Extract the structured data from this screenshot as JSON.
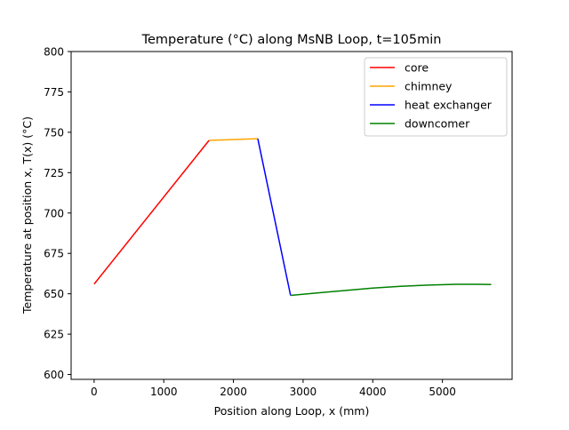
{
  "chart_data": {
    "type": "line",
    "title": "Temperature (°C) along MsNB Loop, t=105min",
    "xlabel": "Position along Loop, x (mm)",
    "ylabel": "Temperature at position x, T(x) (°C)",
    "xlim": [
      -330,
      6000
    ],
    "ylim": [
      597,
      800
    ],
    "xticks": [
      0,
      1000,
      2000,
      3000,
      4000,
      5000
    ],
    "yticks": [
      600,
      625,
      650,
      675,
      700,
      725,
      750,
      775,
      800
    ],
    "grid": false,
    "legend_position": "top-right",
    "series": [
      {
        "name": "core",
        "color": "#ff0000",
        "points": [
          [
            0,
            656
          ],
          [
            1650,
            745
          ]
        ]
      },
      {
        "name": "chimney",
        "color": "#ffa500",
        "points": [
          [
            1650,
            745
          ],
          [
            2350,
            746
          ]
        ]
      },
      {
        "name": "heat exchanger",
        "color": "#0000ff",
        "points": [
          [
            2350,
            746
          ],
          [
            2820,
            649
          ]
        ]
      },
      {
        "name": "downcomer",
        "color": "#008000",
        "points": [
          [
            2820,
            649
          ],
          [
            3200,
            650.5
          ],
          [
            3600,
            652
          ],
          [
            4000,
            653.5
          ],
          [
            4400,
            654.6
          ],
          [
            4800,
            655.4
          ],
          [
            5200,
            655.9
          ],
          [
            5500,
            655.9
          ],
          [
            5700,
            655.7
          ]
        ]
      }
    ]
  }
}
